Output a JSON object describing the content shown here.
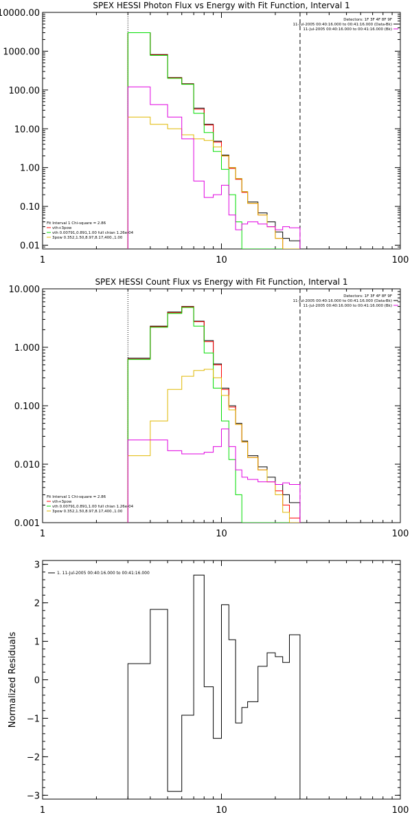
{
  "chart_data": [
    {
      "type": "line",
      "step": true,
      "title": "SPEX HESSI Photon Flux vs Energy with Fit Function, Interval 1",
      "xlabel": "",
      "ylabel": "",
      "xscale": "log",
      "yscale": "log",
      "xlim": [
        1,
        100
      ],
      "ylim": [
        0.008,
        10000
      ],
      "xticks": [
        1,
        10,
        100
      ],
      "xticklabels": [
        "1",
        "10",
        "100"
      ],
      "yticks": [
        0.01,
        0.1,
        1,
        10,
        100,
        1000,
        10000
      ],
      "yticklabels": [
        "0.01",
        "0.10",
        "1.00",
        "10.00",
        "100.00",
        "1000.00",
        "10000.00"
      ],
      "vlines": [
        {
          "x": 3,
          "style": "dotted"
        },
        {
          "x": 27.5,
          "style": "dashed"
        }
      ],
      "legend_topright": [
        "Detectors: 1F 3F 4F 8F 9F",
        "11-Jul-2005 00:40:16.000 to 00:41:16.000 (Data-Bk)",
        "11-Jul-2005 00:40:16.000 to 00:41:16.000 (Bk)"
      ],
      "legend_bottomleft": [
        "Fit Interval  1    Chi-square = 2.86",
        "vth+3pow",
        "vth 0.00791,0.891,1.00  full chian 1.26e-04",
        "3pow 0.352,1.50,8.97,8.17,400.,1.00"
      ],
      "edges": [
        3,
        4,
        5,
        6,
        7,
        8,
        9,
        10,
        11,
        12,
        13,
        14,
        16,
        18,
        20,
        22,
        24,
        27.5
      ],
      "series": [
        {
          "color": "#000000",
          "values": [
            3000,
            820,
            210,
            145,
            34,
            13,
            4.8,
            2.1,
            1.0,
            0.52,
            0.24,
            0.13,
            0.068,
            0.04,
            0.022,
            0.015,
            0.013
          ]
        },
        {
          "color": "#ff0000",
          "values": [
            3000,
            800,
            205,
            142,
            32,
            12.5,
            4.5,
            2.0,
            0.95,
            0.5,
            0.23,
            0.12,
            0.06,
            0.03,
            0.015,
            0.008,
            0.008
          ]
        },
        {
          "color": "#00dd00",
          "values": [
            3000,
            780,
            200,
            140,
            25,
            8.0,
            2.6,
            0.9,
            0.2,
            0.04,
            0.006,
            0.006,
            0.006,
            0.006,
            0.006,
            0.006,
            0.006
          ]
        },
        {
          "color": "#e0b800",
          "values": [
            20,
            13,
            10,
            7,
            5.5,
            5.0,
            3.4,
            2.0,
            1.0,
            0.52,
            0.24,
            0.12,
            0.06,
            0.03,
            0.015,
            0.008,
            0.008
          ]
        },
        {
          "color": "#e000e0",
          "values": [
            120,
            42,
            20,
            5.5,
            0.45,
            0.17,
            0.2,
            0.35,
            0.06,
            0.025,
            0.035,
            0.04,
            0.035,
            0.03,
            0.025,
            0.03,
            0.028
          ]
        }
      ]
    },
    {
      "type": "line",
      "step": true,
      "title": "SPEX HESSI Count Flux vs Energy with Fit Function, Interval 1",
      "xlabel": "",
      "ylabel": "",
      "xscale": "log",
      "yscale": "log",
      "xlim": [
        1,
        100
      ],
      "ylim": [
        0.001,
        10
      ],
      "xticks": [
        1,
        10,
        100
      ],
      "xticklabels": [
        "1",
        "10",
        "100"
      ],
      "yticks": [
        0.001,
        0.01,
        0.1,
        1,
        10
      ],
      "yticklabels": [
        "0.001",
        "0.010",
        "0.100",
        "1.000",
        "10.000"
      ],
      "vlines": [
        {
          "x": 3,
          "style": "dotted"
        },
        {
          "x": 27.5,
          "style": "dashed"
        }
      ],
      "legend_topright": [
        "Detectors: 1F 3F 4F 8F 9F",
        "11-Jul-2005 00:40:16.000 to 00:41:16.000 (Data-Bk)",
        "11-Jul-2005 00:40:16.000 to 00:41:16.000 (Bk)"
      ],
      "legend_bottomleft": [
        "Fit Interval  1    Chi-square = 2.86",
        "vth+3pow",
        "vth 0.00791,0.891,1.00  full chian 1.26e-04",
        "3pow 0.352,1.50,8.97,8.17,400.,1.00"
      ],
      "edges": [
        3,
        4,
        5,
        6,
        7,
        8,
        9,
        10,
        11,
        12,
        13,
        14,
        16,
        18,
        20,
        22,
        24,
        27.5
      ],
      "series": [
        {
          "color": "#000000",
          "values": [
            0.65,
            2.3,
            4.0,
            5.0,
            2.8,
            1.3,
            0.52,
            0.2,
            0.1,
            0.05,
            0.025,
            0.014,
            0.009,
            0.006,
            0.0045,
            0.003,
            0.0022
          ]
        },
        {
          "color": "#ff0000",
          "values": [
            0.63,
            2.25,
            3.9,
            4.9,
            2.75,
            1.25,
            0.5,
            0.19,
            0.095,
            0.048,
            0.024,
            0.013,
            0.008,
            0.005,
            0.0035,
            0.002,
            0.0012
          ]
        },
        {
          "color": "#00dd00",
          "values": [
            0.62,
            2.2,
            3.8,
            4.8,
            2.3,
            0.8,
            0.2,
            0.055,
            0.012,
            0.003,
            0.0009,
            0.0009,
            0.0009,
            0.0009,
            0.0009,
            0.0009,
            0.0009
          ]
        },
        {
          "color": "#e0b800",
          "values": [
            0.014,
            0.055,
            0.19,
            0.32,
            0.4,
            0.42,
            0.3,
            0.15,
            0.085,
            0.048,
            0.024,
            0.013,
            0.008,
            0.005,
            0.003,
            0.0015,
            0.0009
          ]
        },
        {
          "color": "#e000e0",
          "values": [
            0.026,
            0.026,
            0.017,
            0.015,
            0.015,
            0.016,
            0.02,
            0.04,
            0.02,
            0.008,
            0.006,
            0.0055,
            0.005,
            0.005,
            0.0045,
            0.0048,
            0.0045
          ]
        }
      ]
    },
    {
      "type": "line",
      "step": true,
      "title": "",
      "xlabel": "",
      "ylabel": "Normalized Residuals",
      "xscale": "log",
      "yscale": "linear",
      "xlim": [
        1,
        100
      ],
      "ylim": [
        -3.1,
        3.1
      ],
      "xticks": [
        1,
        10,
        100
      ],
      "xticklabels": [
        "1",
        "10",
        "100"
      ],
      "yticks": [
        -3,
        -2,
        -1,
        0,
        1,
        2,
        3
      ],
      "yticklabels": [
        "−3",
        "−2",
        "−1",
        "0",
        "1",
        "2",
        "3"
      ],
      "legend": "1. 11-Jul-2005 00:40:16.000 to 00:41:16.000",
      "edges": [
        3,
        4,
        5,
        6,
        7,
        8,
        9,
        10,
        11,
        12,
        13,
        14,
        16,
        18,
        20,
        22,
        24,
        27.5
      ],
      "series": [
        {
          "color": "#000000",
          "values": [
            0.42,
            1.83,
            -2.9,
            -0.92,
            2.72,
            -0.18,
            -1.52,
            1.95,
            1.04,
            -1.12,
            -0.72,
            -0.57,
            0.35,
            0.7,
            0.6,
            0.45,
            1.17
          ]
        }
      ]
    }
  ]
}
